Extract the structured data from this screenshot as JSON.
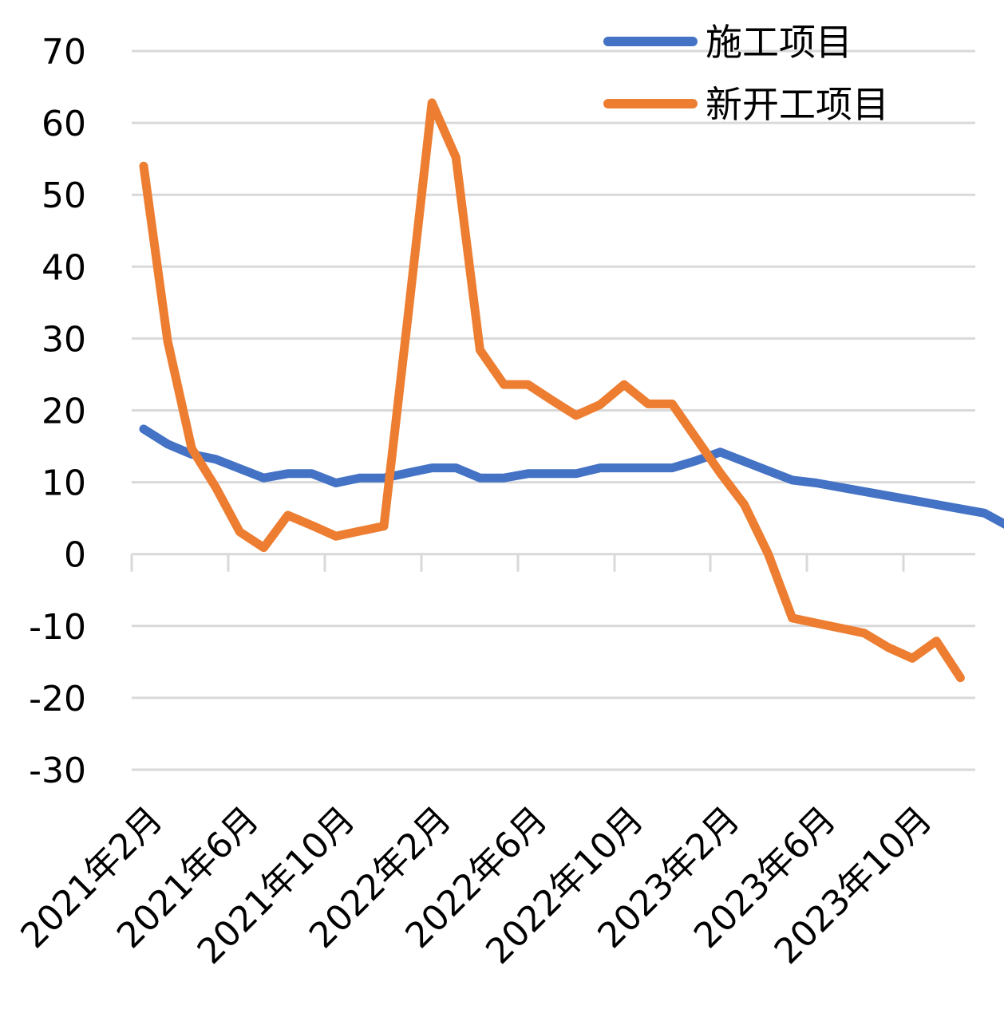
{
  "chart_data": {
    "type": "line",
    "title": "",
    "xlabel": "",
    "ylabel": "",
    "ylim": [
      -30,
      70
    ],
    "yticks": [
      70,
      60,
      50,
      40,
      30,
      20,
      10,
      0,
      -10,
      -20,
      -30
    ],
    "grid": true,
    "legend_position": "top-right",
    "x_tick_labels": [
      "2021年2月",
      "2021年6月",
      "2021年10月",
      "2022年2月",
      "2022年6月",
      "2022年10月",
      "2023年2月",
      "2023年6月",
      "2023年10月"
    ],
    "series": [
      {
        "name": "施工项目",
        "color": "#4472C4",
        "points": [
          [
            0,
            17.4
          ],
          [
            1,
            15.3
          ],
          [
            2,
            13.9
          ],
          [
            3,
            13.2
          ],
          [
            4,
            11.9
          ],
          [
            5,
            10.6
          ],
          [
            6,
            11.2
          ],
          [
            7,
            11.2
          ],
          [
            8,
            9.9
          ],
          [
            9,
            10.6
          ],
          [
            10,
            10.6
          ],
          [
            11,
            11.3
          ],
          [
            12,
            12.0
          ],
          [
            13,
            12.0
          ],
          [
            14,
            10.6
          ],
          [
            15,
            10.6
          ],
          [
            16,
            11.2
          ],
          [
            17,
            11.2
          ],
          [
            18,
            11.2
          ],
          [
            19,
            12.0
          ],
          [
            20,
            12.0
          ],
          [
            21,
            12.0
          ],
          [
            22,
            12.0
          ],
          [
            23,
            13.0
          ],
          [
            24,
            14.2
          ],
          [
            25,
            12.9
          ],
          [
            26,
            11.6
          ],
          [
            27,
            10.3
          ],
          [
            28,
            9.9
          ],
          [
            29,
            9.3
          ],
          [
            30,
            8.7
          ],
          [
            31,
            8.1
          ],
          [
            32,
            7.5
          ],
          [
            33,
            6.9
          ],
          [
            34,
            6.3
          ],
          [
            35,
            5.7
          ],
          [
            36,
            3.9
          ]
        ]
      },
      {
        "name": "新开工项目",
        "color": "#ED7D31",
        "points": [
          [
            0,
            54.0
          ],
          [
            1,
            29.6
          ],
          [
            2,
            14.7
          ],
          [
            3,
            9.3
          ],
          [
            4,
            3.1
          ],
          [
            5,
            0.9
          ],
          [
            6,
            5.4
          ],
          [
            7,
            4.0
          ],
          [
            8,
            2.5
          ],
          [
            9,
            3.2
          ],
          [
            10,
            3.9
          ],
          [
            11,
            33.0
          ],
          [
            12,
            62.8
          ],
          [
            13,
            55.2
          ],
          [
            14,
            28.4
          ],
          [
            15,
            23.6
          ],
          [
            16,
            23.6
          ],
          [
            17,
            21.4
          ],
          [
            18,
            19.3
          ],
          [
            19,
            20.8
          ],
          [
            20,
            23.6
          ],
          [
            21,
            20.9
          ],
          [
            22,
            20.9
          ],
          [
            23,
            16.1
          ],
          [
            24,
            11.3
          ],
          [
            25,
            6.9
          ],
          [
            26,
            0.0
          ],
          [
            27,
            -8.9
          ],
          [
            28,
            -9.6
          ],
          [
            29,
            -10.3
          ],
          [
            30,
            -11.0
          ],
          [
            31,
            -13.0
          ],
          [
            32,
            -14.5
          ],
          [
            33,
            -12.1
          ],
          [
            34,
            -17.2
          ]
        ]
      }
    ]
  }
}
